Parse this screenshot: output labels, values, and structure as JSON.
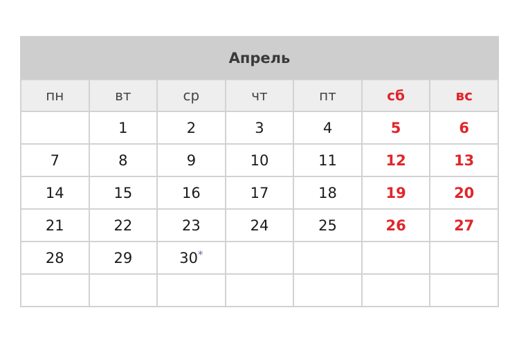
{
  "calendar": {
    "month": "Апрель",
    "weekdays": [
      "пн",
      "вт",
      "ср",
      "чт",
      "пт",
      "сб",
      "вс"
    ],
    "weekend_columns": [
      5,
      6
    ],
    "weeks": [
      [
        "",
        "1",
        "2",
        "3",
        "4",
        "5",
        "6"
      ],
      [
        "7",
        "8",
        "9",
        "10",
        "11",
        "12",
        "13"
      ],
      [
        "14",
        "15",
        "16",
        "17",
        "18",
        "19",
        "20"
      ],
      [
        "21",
        "22",
        "23",
        "24",
        "25",
        "26",
        "27"
      ],
      [
        "28",
        "29",
        "30",
        "",
        "",
        "",
        ""
      ],
      [
        "",
        "",
        "",
        "",
        "",
        "",
        ""
      ]
    ],
    "marked_day": "30",
    "mark_symbol": "*",
    "colors": {
      "weekend": "#e0262b",
      "mark": "#6a6aa8",
      "title_bg": "#cecece",
      "header_bg": "#eeeeee"
    }
  }
}
